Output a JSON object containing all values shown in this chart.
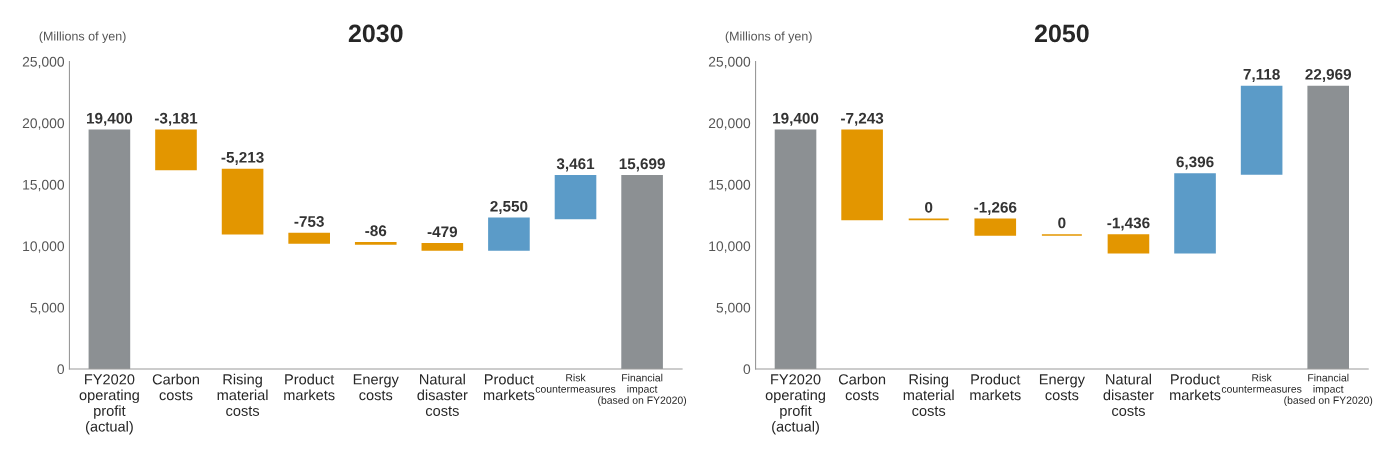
{
  "chart_data": [
    {
      "type": "bar",
      "title": "2030",
      "ylabel": "(Millions of yen)",
      "categories": [
        "FY2020\noperating\nprofit\n(actual)",
        "Carbon\ncosts",
        "Rising\nmaterial\ncosts",
        "Product\nmarkets",
        "Energy\ncosts",
        "Natural\ndisaster\ncosts",
        "Product\nmarkets",
        "Risk\ncountermeasures",
        "Financial\nimpact\n(based on FY2020)"
      ],
      "values": [
        19400,
        -3181,
        -5213,
        -753,
        -86,
        -479,
        2550,
        3461,
        15699
      ],
      "base": [
        0,
        19400,
        16219,
        11006,
        10253,
        10167,
        9688,
        12238,
        0
      ],
      "colors": [
        "#8c9093",
        "#e39600",
        "#e39600",
        "#e39600",
        "#e39600",
        "#e39600",
        "#5b9bc8",
        "#5b9bc8",
        "#8c9093"
      ],
      "value_labels": [
        "19,400",
        "-3,181",
        "-5,213",
        "-753",
        "-86",
        "-479",
        "2,550",
        "3,461",
        "15,699"
      ],
      "ylim": [
        0,
        25000
      ],
      "yticks": [
        0,
        {
          "value": 5000,
          "label": "5,000"
        },
        {
          "value": 10000,
          "label": "10,000"
        },
        {
          "value": 15000,
          "label": "15,000"
        },
        {
          "value": 20000,
          "label": "20,000"
        },
        {
          "value": 25000,
          "label": "25,000"
        }
      ],
      "grid": false
    },
    {
      "type": "bar",
      "title": "2050",
      "ylabel": "(Millions of yen)",
      "categories": [
        "FY2020\noperating\nprofit\n(actual)",
        "Carbon\ncosts",
        "Rising\nmaterial\ncosts",
        "Product\nmarkets",
        "Energy\ncosts",
        "Natural\ndisaster\ncosts",
        "Product\nmarkets",
        "Risk\ncountermeasures",
        "Financial\nimpact\n(based on FY2020)"
      ],
      "values": [
        19400,
        -7243,
        0,
        -1266,
        0,
        -1436,
        6396,
        7118,
        22969
      ],
      "base": [
        0,
        19400,
        12157,
        12157,
        10891,
        10891,
        9455,
        15851,
        0
      ],
      "colors": [
        "#8c9093",
        "#e39600",
        "#e39600",
        "#e39600",
        "#e39600",
        "#e39600",
        "#5b9bc8",
        "#5b9bc8",
        "#8c9093"
      ],
      "value_labels": [
        "19,400",
        "-7,243",
        "0",
        "-1,266",
        "0",
        "-1,436",
        "6,396",
        "7,118",
        "22,969"
      ],
      "ylim": [
        0,
        25000
      ],
      "yticks": [
        0,
        {
          "value": 5000,
          "label": "5,000"
        },
        {
          "value": 10000,
          "label": "10,000"
        },
        {
          "value": 15000,
          "label": "15,000"
        },
        {
          "value": 20000,
          "label": "20,000"
        },
        {
          "value": 25000,
          "label": "25,000"
        }
      ],
      "grid": false
    }
  ]
}
